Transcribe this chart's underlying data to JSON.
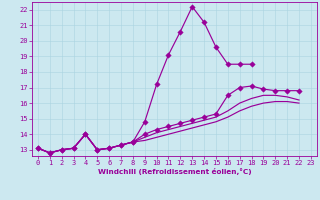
{
  "xlabel": "Windchill (Refroidissement éolien,°C)",
  "bg_color": "#cce8f0",
  "line_color": "#990099",
  "grid_color": "#aad4e0",
  "xlim_min": -0.5,
  "xlim_max": 23.5,
  "ylim_min": 12.6,
  "ylim_max": 22.5,
  "xticks": [
    0,
    1,
    2,
    3,
    4,
    5,
    6,
    7,
    8,
    9,
    10,
    11,
    12,
    13,
    14,
    15,
    16,
    17,
    18,
    19,
    20,
    21,
    22,
    23
  ],
  "yticks": [
    13,
    14,
    15,
    16,
    17,
    18,
    19,
    20,
    21,
    22
  ],
  "curve_peak": {
    "x": [
      0,
      1,
      2,
      3,
      4,
      5,
      6,
      7,
      8,
      9,
      10,
      11,
      12,
      13,
      14,
      15,
      16,
      17,
      18
    ],
    "y": [
      13.1,
      12.8,
      13.0,
      13.1,
      14.0,
      13.0,
      13.1,
      13.3,
      13.5,
      14.8,
      17.2,
      19.1,
      20.6,
      22.2,
      21.2,
      19.6,
      18.5,
      18.5,
      18.5
    ],
    "marker": true
  },
  "curve_mid_high": {
    "x": [
      0,
      1,
      2,
      3,
      4,
      5,
      6,
      7,
      8,
      9,
      10,
      11,
      12,
      13,
      14,
      15,
      16,
      17,
      18,
      19,
      20,
      21,
      22
    ],
    "y": [
      13.1,
      12.8,
      13.0,
      13.1,
      14.0,
      13.0,
      13.1,
      13.3,
      13.5,
      14.0,
      14.3,
      14.5,
      14.7,
      14.9,
      15.1,
      15.3,
      16.5,
      17.0,
      17.1,
      16.9,
      16.8,
      16.8,
      16.8
    ],
    "marker": true
  },
  "curve_mid": {
    "x": [
      0,
      1,
      2,
      3,
      4,
      5,
      6,
      7,
      8,
      9,
      10,
      11,
      12,
      13,
      14,
      15,
      16,
      17,
      18,
      19,
      20,
      21,
      22
    ],
    "y": [
      13.1,
      12.8,
      13.0,
      13.1,
      14.0,
      13.0,
      13.1,
      13.3,
      13.5,
      13.8,
      14.1,
      14.3,
      14.5,
      14.7,
      14.9,
      15.1,
      15.5,
      16.0,
      16.3,
      16.5,
      16.5,
      16.4,
      16.2
    ],
    "marker": false
  },
  "curve_low": {
    "x": [
      0,
      1,
      2,
      3,
      4,
      5,
      6,
      7,
      8,
      9,
      10,
      11,
      12,
      13,
      14,
      15,
      16,
      17,
      18,
      19,
      20,
      21,
      22
    ],
    "y": [
      13.1,
      12.8,
      13.0,
      13.1,
      14.0,
      13.0,
      13.1,
      13.3,
      13.5,
      13.6,
      13.8,
      14.0,
      14.2,
      14.4,
      14.6,
      14.8,
      15.1,
      15.5,
      15.8,
      16.0,
      16.1,
      16.1,
      16.0
    ],
    "marker": false
  },
  "figwidth": 3.2,
  "figheight": 2.0,
  "dpi": 100,
  "lw": 0.85,
  "marker_size": 2.8,
  "tick_fontsize": 5.0,
  "xlabel_fontsize": 5.2
}
